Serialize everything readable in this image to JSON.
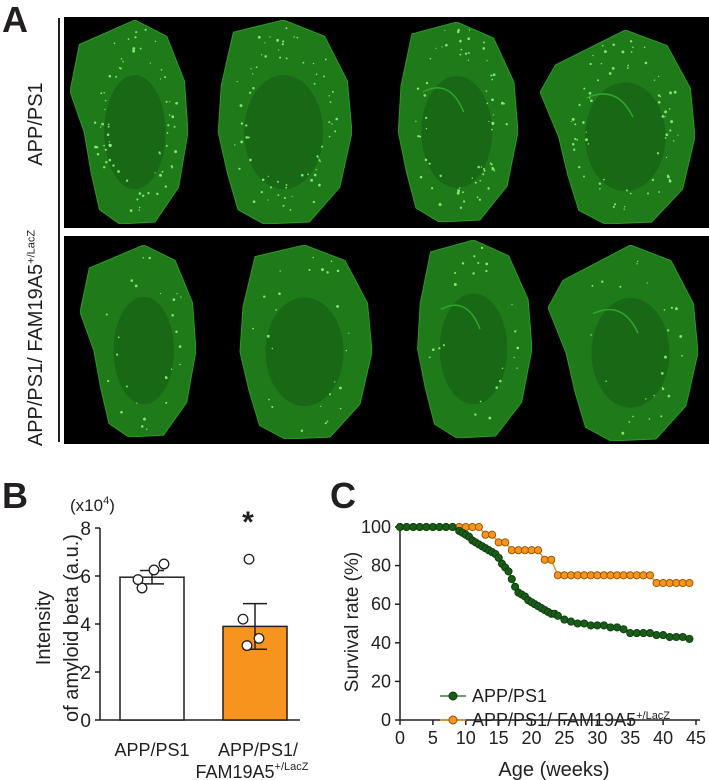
{
  "figure": {
    "panels": {
      "a": {
        "letter": "A"
      },
      "b": {
        "letter": "B"
      },
      "c": {
        "letter": "C"
      }
    },
    "row_labels": {
      "top": "APP/PS1",
      "bottom_main": "APP/PS1/ FAM19A5",
      "bottom_sup": "+/LacZ"
    },
    "image_colors": {
      "background": "#000000",
      "tissue": "#1f7a1a",
      "tissue_dark": "#155c12",
      "plaque": "#8cff7a"
    },
    "sections_per_row": 4
  },
  "chart_data": [
    {
      "id": "panel-b",
      "type": "bar",
      "title": "",
      "scale_label": "(x10",
      "scale_exp": "4",
      "scale_close": ")",
      "ylabel_line1": "Intensity",
      "ylabel_line2": "of amyloid beta (a.u.)",
      "ylim": [
        0,
        8
      ],
      "yticks": [
        "0",
        "2",
        "4",
        "6",
        "8"
      ],
      "categories": [
        {
          "line1": "APP/PS1",
          "line2": "",
          "sup": ""
        },
        {
          "line1": "APP/PS1/",
          "line2": "FAM19A5",
          "sup": "+/LacZ"
        }
      ],
      "values": [
        5.95,
        3.9
      ],
      "sem": [
        0.28,
        0.95
      ],
      "points": [
        [
          5.5,
          5.85,
          6.25,
          6.5
        ],
        [
          3.1,
          3.4,
          4.2,
          6.7
        ]
      ],
      "bar_colors": [
        "#ffffff",
        "#f7941d"
      ],
      "significance": "*"
    },
    {
      "id": "panel-c",
      "type": "line",
      "title": "",
      "xlabel": "Age (weeks)",
      "ylabel": "Survival rate (%)",
      "xlim": [
        0,
        45
      ],
      "ylim": [
        0,
        100
      ],
      "xticks": [
        "0",
        "5",
        "10",
        "15",
        "20",
        "25",
        "30",
        "35",
        "40",
        "45"
      ],
      "yticks": [
        "0",
        "20",
        "40",
        "60",
        "80",
        "100"
      ],
      "legend_position": "bottom-left",
      "series": [
        {
          "name": "APP/PS1",
          "name_sup": "",
          "color": "#1a5c1a",
          "line_color": "#3a7a33",
          "x": [
            0,
            1,
            2,
            3,
            4,
            5,
            6,
            7,
            8,
            9,
            9.5,
            10,
            10.5,
            11,
            11.5,
            12,
            12.5,
            13,
            13.5,
            14,
            14.5,
            15,
            15.5,
            16,
            16.5,
            17,
            17.5,
            18,
            18.5,
            19,
            19.5,
            20,
            20.5,
            21,
            21.5,
            22,
            22.5,
            23,
            23.5,
            24,
            25,
            26,
            27,
            28,
            29,
            30,
            31,
            32,
            33,
            34,
            35,
            36,
            37,
            38,
            39,
            40,
            41,
            42,
            43,
            44
          ],
          "y": [
            100,
            100,
            100,
            100,
            100,
            100,
            100,
            100,
            100,
            98,
            97,
            96,
            95,
            93,
            92,
            91,
            90,
            89,
            88,
            87,
            86,
            84,
            81,
            79,
            77,
            73,
            69,
            66,
            65,
            64,
            62,
            61,
            60,
            59,
            58,
            57,
            56,
            55,
            55,
            54,
            52,
            51,
            50,
            50,
            49,
            49,
            49,
            48,
            48,
            47,
            45,
            45,
            45,
            45,
            44,
            44,
            43,
            43,
            43,
            42
          ]
        },
        {
          "name": "APP/PS1/ FAM19A5",
          "name_sup": "+/LacZ",
          "color": "#f7941d",
          "line_color": "#f7941d",
          "x": [
            0,
            1,
            2,
            3,
            4,
            5,
            6,
            7,
            8,
            9,
            10,
            11,
            12,
            13,
            14,
            15,
            16,
            17,
            18,
            19,
            20,
            21,
            22,
            23,
            24,
            25,
            26,
            27,
            28,
            29,
            30,
            31,
            32,
            33,
            34,
            35,
            36,
            37,
            38,
            39,
            40,
            41,
            42,
            43,
            44
          ],
          "y": [
            100,
            100,
            100,
            100,
            100,
            100,
            100,
            100,
            100,
            100,
            100,
            100,
            100,
            96,
            96,
            92,
            92,
            88,
            88,
            88,
            88,
            88,
            83,
            83,
            75,
            75,
            75,
            75,
            75,
            75,
            75,
            75,
            75,
            75,
            75,
            75,
            75,
            75,
            75,
            71,
            71,
            71,
            71,
            71,
            71
          ]
        }
      ]
    }
  ]
}
